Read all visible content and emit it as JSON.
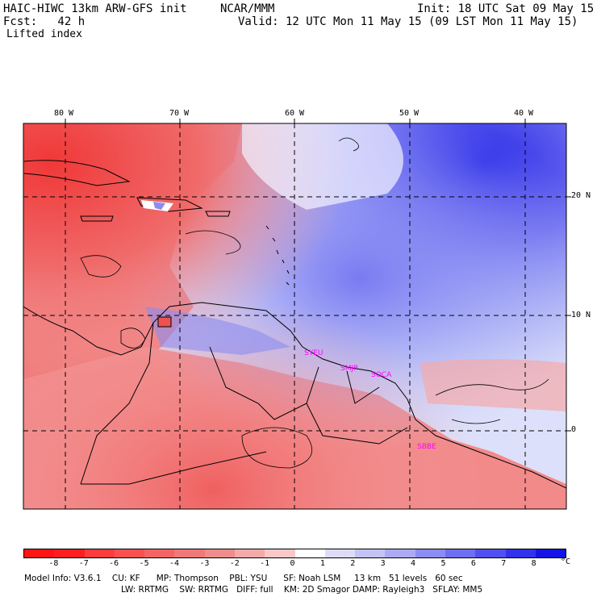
{
  "header": {
    "model_title": "HAIC-HIWC 13km ARW-GFS init",
    "org": "NCAR/MMM",
    "init": "Init: 18 UTC Sat 09 May 15",
    "fcst": "Fcst:   42 h",
    "valid": "Valid: 12 UTC Mon 11 May 15 (09 LST Mon 11 May 15)",
    "field": "Lifted index"
  },
  "map": {
    "lon_labels": [
      "80 W",
      "70 W",
      "60 W",
      "50 W",
      "40 W"
    ],
    "lat_labels": [
      "20 N",
      "10 N",
      "0"
    ],
    "stations": [
      "SYEU",
      "SMJP",
      "SOCA",
      "SBBE"
    ]
  },
  "colorbar": {
    "labels": [
      "-8",
      "-7",
      "-6",
      "-5",
      "-4",
      "-3",
      "-2",
      "-1",
      "0",
      "1",
      "2",
      "3",
      "4",
      "5",
      "6",
      "7",
      "8"
    ],
    "unit": "°C",
    "colors": [
      "#ff1e1e",
      "#ff3c3c",
      "#fa5050",
      "#f56464",
      "#f07878",
      "#f08c8c",
      "#f5aaaa",
      "#fac8c8",
      "#ffffff",
      "#dcdcfa",
      "#c3c3fa",
      "#aaaaf5",
      "#8c8cf5",
      "#6e6ef0",
      "#5050f0",
      "#3232ec",
      "#1414e6"
    ]
  },
  "footer": {
    "line1": "Model Info: V3.6.1    CU: KF      MP: Thompson    PBL: YSU      SF: Noah LSM     13 km   51 levels   60 sec",
    "line2": "LW: RRTMG    SW: RRTMG   DIFF: full    KM: 2D Smagor DAMP: Rayleigh3   SFLAY: MM5"
  }
}
